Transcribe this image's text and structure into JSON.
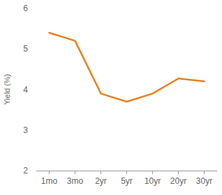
{
  "chart_data": {
    "type": "line",
    "y_label": "Yield (%)",
    "categories": [
      "1mo",
      "3mo",
      "2yr",
      "5yr",
      "10yr",
      "20yr",
      "30yr"
    ],
    "values": [
      5.4,
      5.2,
      3.9,
      3.7,
      3.9,
      4.27,
      4.2
    ],
    "color": "#e8821e",
    "ylim": [
      2,
      6
    ],
    "yticks": [
      2,
      3,
      4,
      5,
      6
    ],
    "grid": false
  }
}
